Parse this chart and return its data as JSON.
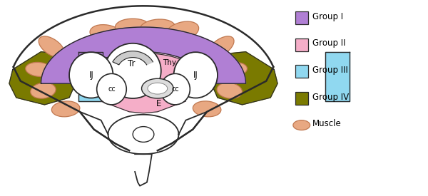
{
  "group1_color": "#b07fd4",
  "group2_color": "#f5aec8",
  "group3_color": "#90d8f0",
  "group4_color": "#7a7a00",
  "muscle_color": "#e8a882",
  "muscle_edge": "#c07850",
  "bg_color": "#ffffff",
  "outline_color": "#2a2a2a",
  "legend_labels": [
    "Group I",
    "Group II",
    "Group III",
    "Group IV",
    "Muscle"
  ],
  "legend_colors": [
    "#b07fd4",
    "#f5aec8",
    "#90d8f0",
    "#7a7a00",
    "#e8a882"
  ],
  "figsize": [
    6.0,
    2.75
  ],
  "dpi": 100
}
